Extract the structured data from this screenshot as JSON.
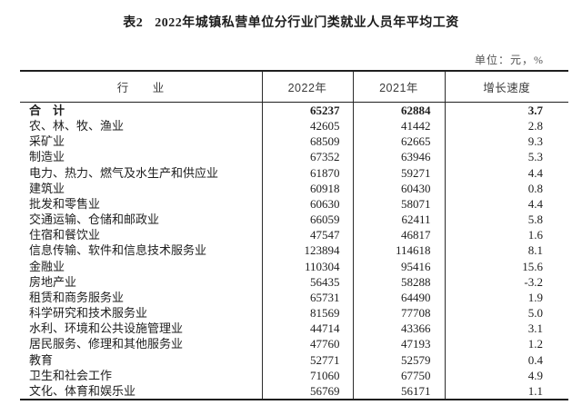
{
  "document": {
    "title_prefix": "表2",
    "title_text": "2022年城镇私营单位分行业门类就业人员年平均工资",
    "unit_note": "单位：元，%"
  },
  "table": {
    "header": {
      "industry": "行　　业",
      "year_2022": "2022年",
      "year_2021": "2021年",
      "growth": "增长速度"
    },
    "rows": [
      {
        "industry": "合　计",
        "v2022": "65237",
        "v2021": "62884",
        "growth": "3.7",
        "bold": true
      },
      {
        "industry": "农、林、牧、渔业",
        "v2022": "42605",
        "v2021": "41442",
        "growth": "2.8",
        "bold": false
      },
      {
        "industry": "采矿业",
        "v2022": "68509",
        "v2021": "62665",
        "growth": "9.3",
        "bold": false
      },
      {
        "industry": "制造业",
        "v2022": "67352",
        "v2021": "63946",
        "growth": "5.3",
        "bold": false
      },
      {
        "industry": "电力、热力、燃气及水生产和供应业",
        "v2022": "61870",
        "v2021": "59271",
        "growth": "4.4",
        "bold": false
      },
      {
        "industry": "建筑业",
        "v2022": "60918",
        "v2021": "60430",
        "growth": "0.8",
        "bold": false
      },
      {
        "industry": "批发和零售业",
        "v2022": "60630",
        "v2021": "58071",
        "growth": "4.4",
        "bold": false
      },
      {
        "industry": "交通运输、仓储和邮政业",
        "v2022": "66059",
        "v2021": "62411",
        "growth": "5.8",
        "bold": false
      },
      {
        "industry": "住宿和餐饮业",
        "v2022": "47547",
        "v2021": "46817",
        "growth": "1.6",
        "bold": false
      },
      {
        "industry": "信息传输、软件和信息技术服务业",
        "v2022": "123894",
        "v2021": "114618",
        "growth": "8.1",
        "bold": false
      },
      {
        "industry": "金融业",
        "v2022": "110304",
        "v2021": "95416",
        "growth": "15.6",
        "bold": false
      },
      {
        "industry": "房地产业",
        "v2022": "56435",
        "v2021": "58288",
        "growth": "-3.2",
        "bold": false
      },
      {
        "industry": "租赁和商务服务业",
        "v2022": "65731",
        "v2021": "64490",
        "growth": "1.9",
        "bold": false
      },
      {
        "industry": "科学研究和技术服务业",
        "v2022": "81569",
        "v2021": "77708",
        "growth": "5.0",
        "bold": false
      },
      {
        "industry": "水利、环境和公共设施管理业",
        "v2022": "44714",
        "v2021": "43366",
        "growth": "3.1",
        "bold": false
      },
      {
        "industry": "居民服务、修理和其他服务业",
        "v2022": "47760",
        "v2021": "47193",
        "growth": "1.2",
        "bold": false
      },
      {
        "industry": "教育",
        "v2022": "52771",
        "v2021": "52579",
        "growth": "0.4",
        "bold": false
      },
      {
        "industry": "卫生和社会工作",
        "v2022": "71060",
        "v2021": "67750",
        "growth": "4.9",
        "bold": false
      },
      {
        "industry": "文化、体育和娱乐业",
        "v2022": "56769",
        "v2021": "56171",
        "growth": "1.1",
        "bold": false
      }
    ]
  },
  "colors": {
    "text": "#1e1e1e",
    "rule_line": "#1f1f1f",
    "unit_note_text": "#555555",
    "background": "#ffffff"
  }
}
